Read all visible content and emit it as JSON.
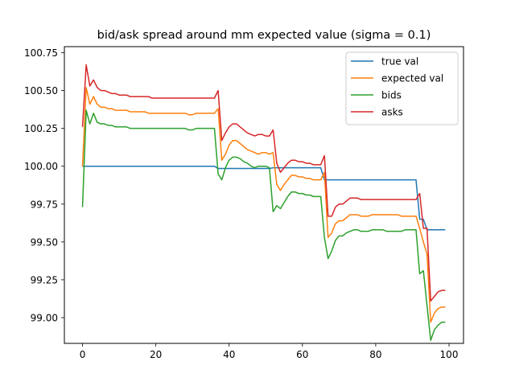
{
  "chart_data": {
    "type": "line",
    "title": "bid/ask spread around mm expected value (sigma = 0.1)",
    "xlabel": "",
    "ylabel": "",
    "xlim": [
      -4.95,
      103.95
    ],
    "ylim": [
      98.83,
      100.79
    ],
    "xticks": [
      0,
      20,
      40,
      60,
      80,
      100
    ],
    "yticks": [
      99.0,
      99.25,
      99.5,
      99.75,
      100.0,
      100.25,
      100.5,
      100.75
    ],
    "ytick_labels": [
      "99.00",
      "99.25",
      "99.50",
      "99.75",
      "100.00",
      "100.25",
      "100.50",
      "100.75"
    ],
    "grid": false,
    "legend_position": "top-right",
    "x": [
      0,
      1,
      2,
      3,
      4,
      5,
      6,
      7,
      8,
      9,
      10,
      11,
      12,
      13,
      14,
      15,
      16,
      17,
      18,
      19,
      20,
      21,
      22,
      23,
      24,
      25,
      26,
      27,
      28,
      29,
      30,
      31,
      32,
      33,
      34,
      35,
      36,
      37,
      38,
      39,
      40,
      41,
      42,
      43,
      44,
      45,
      46,
      47,
      48,
      49,
      50,
      51,
      52,
      53,
      54,
      55,
      56,
      57,
      58,
      59,
      60,
      61,
      62,
      63,
      64,
      65,
      66,
      67,
      68,
      69,
      70,
      71,
      72,
      73,
      74,
      75,
      76,
      77,
      78,
      79,
      80,
      81,
      82,
      83,
      84,
      85,
      86,
      87,
      88,
      89,
      90,
      91,
      92,
      93,
      94,
      95,
      96,
      97,
      98,
      99
    ],
    "series": [
      {
        "name": "true val",
        "color": "#1f77b4",
        "values": [
          100.0,
          100.0,
          100.0,
          100.0,
          100.0,
          100.0,
          100.0,
          100.0,
          100.0,
          100.0,
          100.0,
          100.0,
          100.0,
          100.0,
          100.0,
          100.0,
          100.0,
          100.0,
          100.0,
          100.0,
          100.0,
          100.0,
          100.0,
          100.0,
          100.0,
          100.0,
          100.0,
          100.0,
          100.0,
          100.0,
          100.0,
          100.0,
          100.0,
          100.0,
          100.0,
          100.0,
          100.0,
          99.985,
          99.985,
          99.985,
          99.985,
          99.985,
          99.985,
          99.985,
          99.985,
          99.985,
          99.985,
          99.985,
          99.985,
          99.985,
          99.985,
          99.985,
          99.99,
          99.99,
          99.99,
          99.99,
          99.99,
          99.99,
          99.99,
          99.99,
          99.99,
          99.99,
          99.99,
          99.99,
          99.99,
          99.99,
          99.91,
          99.91,
          99.91,
          99.91,
          99.91,
          99.91,
          99.91,
          99.91,
          99.91,
          99.91,
          99.91,
          99.91,
          99.91,
          99.91,
          99.91,
          99.91,
          99.91,
          99.91,
          99.91,
          99.91,
          99.91,
          99.91,
          99.91,
          99.91,
          99.91,
          99.91,
          99.65,
          99.65,
          99.58,
          99.58,
          99.58,
          99.58,
          99.58,
          99.58
        ]
      },
      {
        "name": "expected val",
        "color": "#ff7f0e",
        "values": [
          100.0,
          100.52,
          100.41,
          100.46,
          100.41,
          100.39,
          100.39,
          100.38,
          100.38,
          100.37,
          100.37,
          100.37,
          100.37,
          100.36,
          100.36,
          100.36,
          100.36,
          100.36,
          100.35,
          100.35,
          100.35,
          100.35,
          100.35,
          100.35,
          100.35,
          100.35,
          100.35,
          100.35,
          100.35,
          100.34,
          100.34,
          100.35,
          100.35,
          100.35,
          100.35,
          100.35,
          100.35,
          100.38,
          100.04,
          100.08,
          100.14,
          100.17,
          100.17,
          100.15,
          100.13,
          100.11,
          100.1,
          100.09,
          100.08,
          100.09,
          100.09,
          100.08,
          100.09,
          99.88,
          99.84,
          99.88,
          99.91,
          99.94,
          99.94,
          99.93,
          99.93,
          99.92,
          99.92,
          99.91,
          99.91,
          99.91,
          99.96,
          99.53,
          99.56,
          99.62,
          99.64,
          99.64,
          99.66,
          99.68,
          99.68,
          99.68,
          99.67,
          99.67,
          99.67,
          99.68,
          99.68,
          99.68,
          99.68,
          99.68,
          99.68,
          99.68,
          99.68,
          99.67,
          99.67,
          99.67,
          99.67,
          99.67,
          99.59,
          99.5,
          99.42,
          98.97,
          99.03,
          99.06,
          99.07,
          99.07
        ]
      },
      {
        "name": "bids",
        "color": "#2ca02c",
        "values": [
          99.73,
          100.37,
          100.28,
          100.35,
          100.29,
          100.28,
          100.28,
          100.27,
          100.27,
          100.26,
          100.26,
          100.26,
          100.26,
          100.25,
          100.25,
          100.25,
          100.25,
          100.25,
          100.25,
          100.25,
          100.25,
          100.25,
          100.25,
          100.25,
          100.25,
          100.25,
          100.25,
          100.25,
          100.25,
          100.24,
          100.24,
          100.25,
          100.25,
          100.25,
          100.25,
          100.25,
          100.25,
          99.95,
          99.91,
          99.99,
          100.04,
          100.06,
          100.06,
          100.05,
          100.03,
          100.02,
          100.0,
          99.99,
          100.0,
          100.0,
          100.0,
          99.99,
          99.7,
          99.74,
          99.72,
          99.76,
          99.8,
          99.83,
          99.83,
          99.82,
          99.82,
          99.81,
          99.81,
          99.8,
          99.8,
          99.8,
          99.53,
          99.39,
          99.44,
          99.51,
          99.54,
          99.54,
          99.56,
          99.57,
          99.58,
          99.58,
          99.57,
          99.57,
          99.57,
          99.58,
          99.58,
          99.58,
          99.58,
          99.57,
          99.57,
          99.57,
          99.57,
          99.57,
          99.58,
          99.58,
          99.58,
          99.58,
          99.29,
          99.31,
          99.08,
          98.85,
          98.92,
          98.95,
          98.97,
          98.97
        ]
      },
      {
        "name": "asks",
        "color": "#d62728",
        "values": [
          100.26,
          100.67,
          100.53,
          100.57,
          100.52,
          100.5,
          100.5,
          100.49,
          100.48,
          100.48,
          100.47,
          100.47,
          100.47,
          100.46,
          100.46,
          100.46,
          100.46,
          100.46,
          100.46,
          100.45,
          100.45,
          100.45,
          100.45,
          100.45,
          100.45,
          100.45,
          100.45,
          100.45,
          100.45,
          100.45,
          100.45,
          100.45,
          100.45,
          100.45,
          100.45,
          100.45,
          100.45,
          100.5,
          100.17,
          100.22,
          100.26,
          100.28,
          100.28,
          100.26,
          100.24,
          100.22,
          100.21,
          100.2,
          100.21,
          100.21,
          100.2,
          100.2,
          100.24,
          100.02,
          99.96,
          99.99,
          100.02,
          100.04,
          100.04,
          100.03,
          100.03,
          100.02,
          100.02,
          100.01,
          100.01,
          100.01,
          100.07,
          99.67,
          99.67,
          99.73,
          99.75,
          99.75,
          99.77,
          99.79,
          99.79,
          99.79,
          99.78,
          99.78,
          99.78,
          99.78,
          99.78,
          99.78,
          99.78,
          99.78,
          99.78,
          99.78,
          99.78,
          99.78,
          99.78,
          99.78,
          99.78,
          99.78,
          99.82,
          99.59,
          99.59,
          99.11,
          99.14,
          99.17,
          99.18,
          99.18
        ]
      }
    ]
  }
}
